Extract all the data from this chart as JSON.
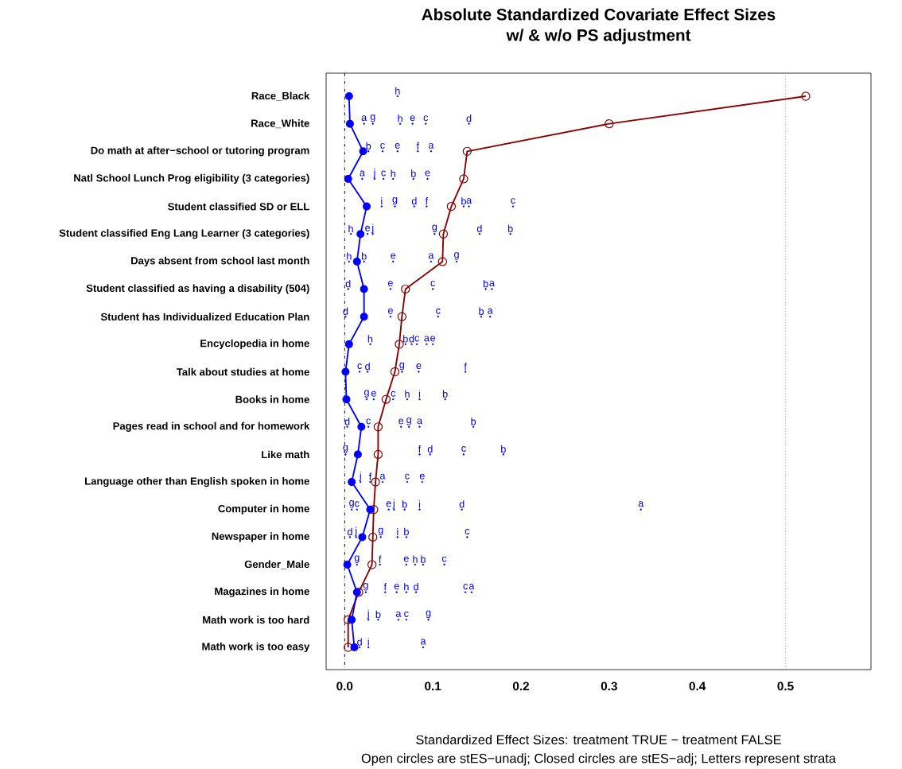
{
  "chart_data": {
    "type": "line",
    "orientation": "horizontal",
    "title": "Absolute Standardized Covariate Effect Sizes",
    "subtitle": "w/ & w/o PS adjustment",
    "xlabel": "Standardized Effect Sizes: treatment TRUE − treatment  FALSE",
    "annotations": [
      "Open circles are stES−unadj; Closed circles are stES−adj; Letters represent strata"
    ],
    "categories": [
      "Race_Black",
      "Race_White",
      "Do math at after−school or tutoring program",
      "Natl School Lunch Prog eligibility (3 categories)",
      "Student classified SD or ELL",
      "Student classified Eng Lang Learner (3 categories)",
      "Days absent from school last month",
      "Student classified as having a disability (504)",
      "Student has Individualized Education Plan",
      "Encyclopedia in home",
      "Talk about studies at home",
      "Books in home",
      "Pages read in school and for homework",
      "Like math",
      "Language other than English spoken in home",
      "Computer in home",
      "Newspaper in home",
      "Gender_Male",
      "Magazines in home",
      "Math work is too hard",
      "Math work is too easy"
    ],
    "xlim": [
      -0.021,
      0.597
    ],
    "xticks": [
      {
        "value": 0,
        "label": "0.0"
      },
      {
        "value": 0.1,
        "label": "0.1"
      },
      {
        "value": 0.2,
        "label": "0.2"
      },
      {
        "value": 0.3,
        "label": "0.3"
      },
      {
        "value": 0.4,
        "label": "0.4"
      },
      {
        "value": 0.5,
        "label": "0.5"
      }
    ],
    "ref_lines": [
      {
        "axis": "x",
        "value": 0,
        "color": "#000000",
        "line_style": "dashdot"
      },
      {
        "axis": "x",
        "value": 0.5,
        "color": "#999999",
        "line_style": "dotted"
      }
    ],
    "series": [
      {
        "type": "scatter",
        "name": "a",
        "color": "#0000ff",
        "values": [
          null,
          0.022,
          0.098,
          0.02,
          0.141,
          null,
          0.098,
          0.167,
          0.165,
          0.093,
          null,
          null,
          0.085,
          null,
          0.043,
          0.336,
          null,
          null,
          0.144,
          0.061,
          0.089
        ]
      },
      {
        "type": "scatter",
        "name": "b",
        "color": "#0000ff",
        "values": [
          null,
          null,
          0.027,
          0.078,
          0.135,
          0.188,
          0.022,
          0.16,
          0.155,
          0.069,
          null,
          0.114,
          0.146,
          0.18,
          null,
          0.068,
          0.07,
          0.089,
          null,
          0.038,
          null
        ]
      },
      {
        "type": "scatter",
        "name": "c",
        "color": "#0000ff",
        "values": [
          null,
          0.092,
          0.043,
          0.044,
          0.191,
          null,
          null,
          0.1,
          0.106,
          0.082,
          0.017,
          0.055,
          0.027,
          0.135,
          0.071,
          0.014,
          0.139,
          0.113,
          0.137,
          0.07,
          null
        ]
      },
      {
        "type": "scatter",
        "name": "d",
        "color": "#0000ff",
        "values": [
          null,
          0.141,
          null,
          null,
          0.079,
          0.153,
          null,
          0.004,
          0.001,
          0.076,
          0.026,
          null,
          0.003,
          0.097,
          null,
          0.133,
          0.006,
          null,
          0.081,
          null,
          0.017
        ]
      },
      {
        "type": "scatter",
        "name": "e",
        "color": "#0000ff",
        "values": [
          null,
          0.077,
          0.06,
          0.094,
          null,
          0.026,
          0.055,
          0.052,
          0.052,
          0.1,
          0.084,
          0.033,
          0.064,
          null,
          0.088,
          0.05,
          null,
          0.07,
          0.059,
          null,
          null
        ]
      },
      {
        "type": "scatter",
        "name": "f",
        "color": "#0000ff",
        "values": [
          null,
          null,
          0.083,
          null,
          0.093,
          null,
          null,
          null,
          null,
          null,
          0.137,
          null,
          null,
          0.085,
          0.029,
          null,
          null,
          0.04,
          0.046,
          null,
          null
        ]
      },
      {
        "type": "scatter",
        "name": "g",
        "color": "#0000ff",
        "values": [
          null,
          0.032,
          null,
          null,
          0.057,
          0.102,
          0.127,
          null,
          null,
          null,
          0.065,
          0.025,
          0.073,
          0.001,
          null,
          0.008,
          0.041,
          0.014,
          0.024,
          0.095,
          null
        ]
      },
      {
        "type": "scatter",
        "name": "h",
        "color": "#0000ff",
        "values": [
          0.06,
          0.063,
          null,
          0.055,
          null,
          0.007,
          0.005,
          null,
          null,
          0.029,
          null,
          0.071,
          null,
          null,
          null,
          null,
          null,
          0.08,
          0.07,
          null,
          null
        ]
      },
      {
        "type": "scatter",
        "name": "i",
        "color": "#0000ff",
        "values": [
          null,
          null,
          null,
          null,
          0.042,
          null,
          null,
          null,
          null,
          null,
          null,
          0.085,
          null,
          null,
          null,
          0.085,
          0.06,
          null,
          null,
          null,
          0.027
        ]
      },
      {
        "type": "scatter",
        "name": "j",
        "color": "#0000ff",
        "values": [
          null,
          null,
          null,
          0.034,
          null,
          0.032,
          null,
          null,
          null,
          null,
          null,
          null,
          null,
          null,
          0.018,
          0.056,
          0.013,
          null,
          null,
          0.027,
          null
        ]
      },
      {
        "color": "#8b0000",
        "marker": "circle_open",
        "values": [
          0.523,
          0.3,
          0.139,
          0.135,
          0.121,
          0.112,
          0.111,
          0.069,
          0.065,
          0.062,
          0.057,
          0.047,
          0.038,
          0.038,
          0.035,
          0.033,
          0.032,
          0.031,
          0.016,
          0.004,
          0.004
        ]
      },
      {
        "color": "#0000ff",
        "marker": "circle",
        "values": [
          0.005,
          0.006,
          0.021,
          0.004,
          0.025,
          0.018,
          0.014,
          0.022,
          0.022,
          0.005,
          0.001,
          0.002,
          0.019,
          0.015,
          0.008,
          0.029,
          0.02,
          0.003,
          0.014,
          0.008,
          0.011
        ]
      }
    ]
  }
}
